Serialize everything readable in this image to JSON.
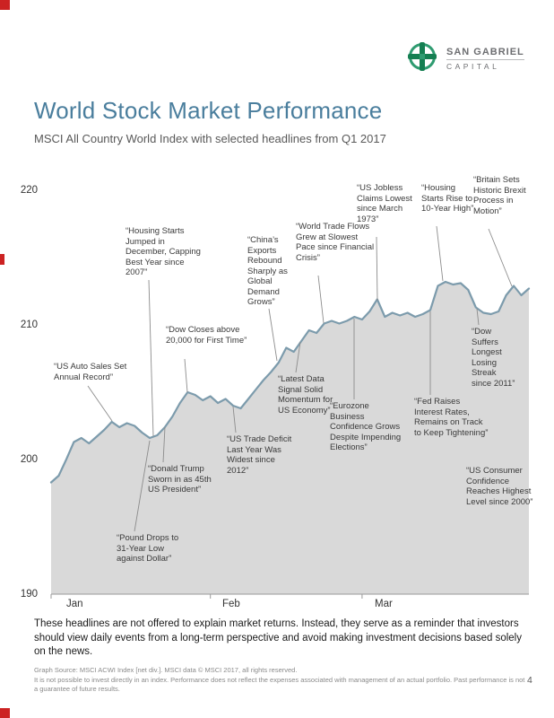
{
  "page": {
    "number": "4"
  },
  "logo": {
    "name_line1": "SAN GABRIEL",
    "name_line2": "CAPITAL"
  },
  "header": {
    "title": "World Stock Market Performance",
    "subtitle": "MSCI All Country World Index with selected headlines from Q1 2017"
  },
  "chart_data": {
    "type": "area",
    "title": "World Stock Market Performance",
    "subtitle": "MSCI All Country World Index with selected headlines from Q1 2017",
    "ylim": [
      190,
      220
    ],
    "yticks": [
      220,
      210,
      200,
      190
    ],
    "xticks": [
      "Jan",
      "Feb",
      "Mar"
    ],
    "grid": false,
    "legend": "none",
    "line_color": "#7C9BAC",
    "fill_color": "#D9D9D9",
    "series": [
      {
        "name": "MSCI All Country World Index (net div.)",
        "values": [
          198.3,
          198.8,
          200.0,
          201.3,
          201.6,
          201.2,
          201.7,
          202.2,
          202.8,
          202.4,
          202.7,
          202.5,
          202.0,
          201.6,
          201.8,
          202.4,
          203.2,
          204.2,
          205.0,
          204.8,
          204.4,
          204.7,
          204.2,
          204.5,
          204.0,
          203.8,
          204.5,
          205.2,
          205.9,
          206.5,
          207.2,
          208.3,
          208.0,
          208.8,
          209.6,
          209.4,
          210.1,
          210.3,
          210.1,
          210.3,
          210.6,
          210.4,
          211.0,
          211.9,
          210.6,
          210.9,
          210.7,
          210.9,
          210.6,
          210.8,
          211.1,
          212.9,
          213.2,
          213.0,
          213.1,
          212.6,
          211.3,
          210.9,
          210.8,
          211.0,
          212.2,
          212.9,
          212.2,
          212.7
        ]
      }
    ],
    "annotations": [
      {
        "text": "“US Auto Sales Set Annual Record”"
      },
      {
        "text": "“Housing Starts Jumped in December, Capping Best Year since 2007”"
      },
      {
        "text": "“Dow Closes above 20,000 for First Time”"
      },
      {
        "text": "“Pound Drops to 31-Year Low against Dollar”"
      },
      {
        "text": "“Donald Trump Sworn in as 45th US President”"
      },
      {
        "text": "“US Trade Deficit Last Year Was Widest since 2012”"
      },
      {
        "text": "“China’s Exports Rebound Sharply as Global Demand Grows”"
      },
      {
        "text": "“Latest Data Signal Solid Momentum for US Economy”"
      },
      {
        "text": "“World Trade Flows Grew at Slowest Pace since Financial Crisis”"
      },
      {
        "text": "“Eurozone Business Confidence Grows Despite Impending Elections”"
      },
      {
        "text": "“US Jobless Claims Lowest since March 1973”"
      },
      {
        "text": "“Fed Raises Interest Rates, Remains on Track to Keep Tightening”"
      },
      {
        "text": "“Housing Starts Rise to 10-Year High”"
      },
      {
        "text": "“Britain Sets Historic Brexit Process in Motion”"
      },
      {
        "text": "“Dow Suffers Longest Losing Streak since 2011”"
      },
      {
        "text": "“US Consumer Confidence Reaches Highest Level since 2000”"
      }
    ]
  },
  "body": {
    "disclaimer": "These headlines are not offered to explain market returns. Instead, they serve as a reminder that investors should view daily events from a long-term perspective and avoid making investment decisions based solely on the news."
  },
  "footer": {
    "source": "Graph Source: MSCI ACWI Index [net div.]. MSCI data © MSCI 2017, all rights reserved.",
    "disclosure": "It is not possible to invest directly in an index. Performance does not reflect the expenses associated with management of an actual portfolio. Past performance is not a guarantee of future results."
  },
  "brand": {
    "title_color": "#4A7E9D",
    "logo_green": "#2E9B70",
    "logo_dark_green": "#157F52"
  }
}
